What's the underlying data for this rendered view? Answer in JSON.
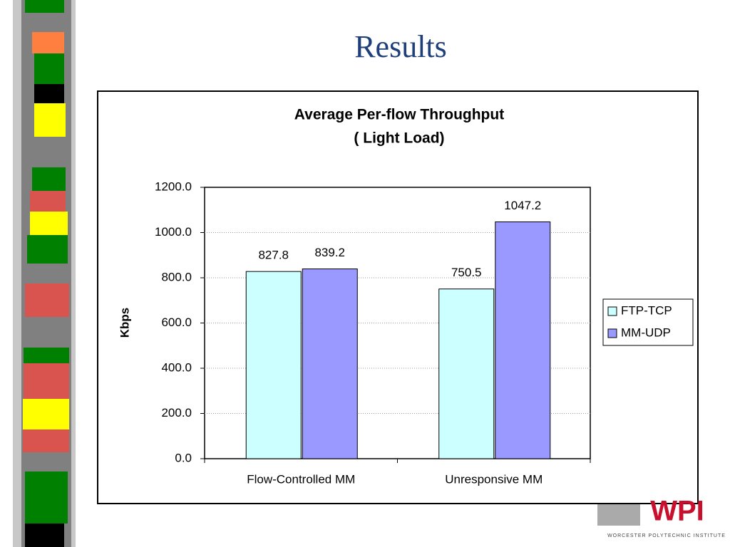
{
  "slide_title": "Results",
  "logo": {
    "text": "WPI",
    "caption": "WORCESTER POLYTECHNIC INSTITUTE"
  },
  "chart_data": {
    "type": "bar",
    "title": "Average Per-flow Throughput",
    "subtitle": "( Light Load)",
    "y_label": "Kbps",
    "categories": [
      "Flow-Controlled MM",
      "Unresponsive MM"
    ],
    "series": [
      {
        "name": "FTP-TCP",
        "color": "#ccffff",
        "values": [
          827.8,
          750.5
        ]
      },
      {
        "name": "MM-UDP",
        "color": "#9999ff",
        "values": [
          839.2,
          1047.2
        ]
      }
    ],
    "ylim": [
      0,
      1200
    ],
    "yticks": [
      {
        "value": 0,
        "label": "0.0"
      },
      {
        "value": 200,
        "label": "200.0"
      },
      {
        "value": 400,
        "label": "400.0"
      },
      {
        "value": 600,
        "label": "600.0"
      },
      {
        "value": 800,
        "label": "800.0"
      },
      {
        "value": 1000,
        "label": "1000.0"
      },
      {
        "value": 1200,
        "label": "1200.0"
      }
    ],
    "grid": true,
    "legend": "right"
  }
}
